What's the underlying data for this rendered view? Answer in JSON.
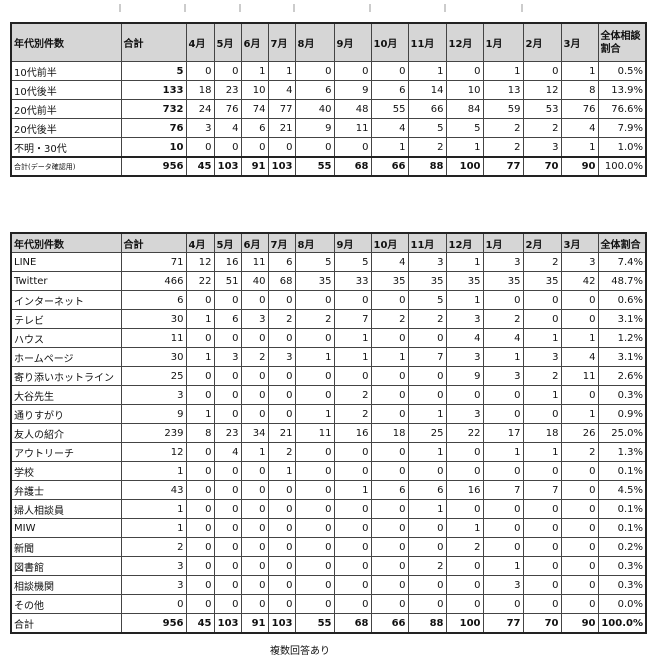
{
  "age_table": {
    "headers": [
      "年代別件数",
      "合計",
      "4月",
      "5月",
      "6月",
      "7月",
      "8月",
      "9月",
      "10月",
      "11月",
      "12月",
      "1月",
      "2月",
      "3月",
      "全体相談割合"
    ],
    "rows": [
      {
        "label": "10代前半",
        "total": 5,
        "months": [
          0,
          0,
          1,
          1,
          0,
          0,
          0,
          1,
          0,
          1,
          0,
          1
        ],
        "pct": "0.5%"
      },
      {
        "label": "10代後半",
        "total": 133,
        "months": [
          18,
          23,
          10,
          4,
          6,
          9,
          6,
          14,
          10,
          13,
          12,
          8
        ],
        "pct": "13.9%"
      },
      {
        "label": "20代前半",
        "total": 732,
        "months": [
          24,
          76,
          74,
          77,
          40,
          48,
          55,
          66,
          84,
          59,
          53,
          76
        ],
        "pct": "76.6%"
      },
      {
        "label": "20代後半",
        "total": 76,
        "months": [
          3,
          4,
          6,
          21,
          9,
          11,
          4,
          5,
          5,
          2,
          2,
          4
        ],
        "pct": "7.9%"
      },
      {
        "label": "不明・30代",
        "total": 10,
        "months": [
          0,
          0,
          0,
          0,
          0,
          0,
          1,
          2,
          1,
          2,
          3,
          1
        ],
        "pct": "1.0%"
      }
    ],
    "total_row": {
      "label": "合計(データ確認用)",
      "total": 956,
      "months": [
        45,
        103,
        91,
        103,
        55,
        68,
        66,
        88,
        100,
        77,
        70,
        90
      ],
      "pct": "100.0%"
    }
  },
  "source_table": {
    "headers": [
      "年代別件数",
      "合計",
      "4月",
      "5月",
      "6月",
      "7月",
      "8月",
      "9月",
      "10月",
      "11月",
      "12月",
      "1月",
      "2月",
      "3月",
      "全体割合"
    ],
    "rows": [
      {
        "label": "LINE",
        "total": 71,
        "months": [
          12,
          16,
          11,
          6,
          5,
          5,
          4,
          3,
          1,
          3,
          2,
          3
        ],
        "pct": "7.4%"
      },
      {
        "label": "Twitter",
        "total": 466,
        "months": [
          22,
          51,
          40,
          68,
          35,
          33,
          35,
          35,
          35,
          35,
          35,
          42
        ],
        "pct": "48.7%"
      },
      {
        "label": "インターネット",
        "total": 6,
        "months": [
          0,
          0,
          0,
          0,
          0,
          0,
          0,
          5,
          1,
          0,
          0,
          0
        ],
        "pct": "0.6%"
      },
      {
        "label": "テレビ",
        "total": 30,
        "months": [
          1,
          6,
          3,
          2,
          2,
          7,
          2,
          2,
          3,
          2,
          0,
          0
        ],
        "pct": "3.1%"
      },
      {
        "label": "ハウス",
        "total": 11,
        "months": [
          0,
          0,
          0,
          0,
          0,
          1,
          0,
          0,
          4,
          4,
          1,
          1
        ],
        "pct": "1.2%"
      },
      {
        "label": "ホームページ",
        "total": 30,
        "months": [
          1,
          3,
          2,
          3,
          1,
          1,
          1,
          7,
          3,
          1,
          3,
          4
        ],
        "pct": "3.1%"
      },
      {
        "label": "寄り添いホットライン",
        "total": 25,
        "months": [
          0,
          0,
          0,
          0,
          0,
          0,
          0,
          0,
          9,
          3,
          2,
          11
        ],
        "pct": "2.6%"
      },
      {
        "label": "大谷先生",
        "total": 3,
        "months": [
          0,
          0,
          0,
          0,
          0,
          2,
          0,
          0,
          0,
          0,
          1,
          0
        ],
        "pct": "0.3%"
      },
      {
        "label": "通りすがり",
        "total": 9,
        "months": [
          1,
          0,
          0,
          0,
          1,
          2,
          0,
          1,
          3,
          0,
          0,
          1
        ],
        "pct": "0.9%"
      },
      {
        "label": "友人の紹介",
        "total": 239,
        "months": [
          8,
          23,
          34,
          21,
          11,
          16,
          18,
          25,
          22,
          17,
          18,
          26
        ],
        "pct": "25.0%"
      },
      {
        "label": "アウトリーチ",
        "total": 12,
        "months": [
          0,
          4,
          1,
          2,
          0,
          0,
          0,
          1,
          0,
          1,
          1,
          2
        ],
        "pct": "1.3%"
      },
      {
        "label": "学校",
        "total": 1,
        "months": [
          0,
          0,
          0,
          1,
          0,
          0,
          0,
          0,
          0,
          0,
          0,
          0
        ],
        "pct": "0.1%"
      },
      {
        "label": "弁護士",
        "total": 43,
        "months": [
          0,
          0,
          0,
          0,
          0,
          1,
          6,
          6,
          16,
          7,
          7,
          0
        ],
        "pct": "4.5%"
      },
      {
        "label": "婦人相談員",
        "total": 1,
        "months": [
          0,
          0,
          0,
          0,
          0,
          0,
          0,
          1,
          0,
          0,
          0,
          0
        ],
        "pct": "0.1%"
      },
      {
        "label": "MIW",
        "total": 1,
        "months": [
          0,
          0,
          0,
          0,
          0,
          0,
          0,
          0,
          1,
          0,
          0,
          0
        ],
        "pct": "0.1%"
      },
      {
        "label": "新聞",
        "total": 2,
        "months": [
          0,
          0,
          0,
          0,
          0,
          0,
          0,
          0,
          2,
          0,
          0,
          0
        ],
        "pct": "0.2%"
      },
      {
        "label": "図書館",
        "total": 3,
        "months": [
          0,
          0,
          0,
          0,
          0,
          0,
          0,
          2,
          0,
          1,
          0,
          0
        ],
        "pct": "0.3%"
      },
      {
        "label": "相談機関",
        "total": 3,
        "months": [
          0,
          0,
          0,
          0,
          0,
          0,
          0,
          0,
          0,
          3,
          0,
          0
        ],
        "pct": "0.3%"
      },
      {
        "label": "その他",
        "total": 0,
        "months": [
          0,
          0,
          0,
          0,
          0,
          0,
          0,
          0,
          0,
          0,
          0,
          0
        ],
        "pct": "0.0%"
      }
    ],
    "total_row": {
      "label": "合計",
      "total": 956,
      "months": [
        45,
        103,
        91,
        103,
        55,
        68,
        66,
        88,
        100,
        77,
        70,
        90
      ],
      "pct": "100.0%"
    }
  },
  "note": "複数回答あり"
}
